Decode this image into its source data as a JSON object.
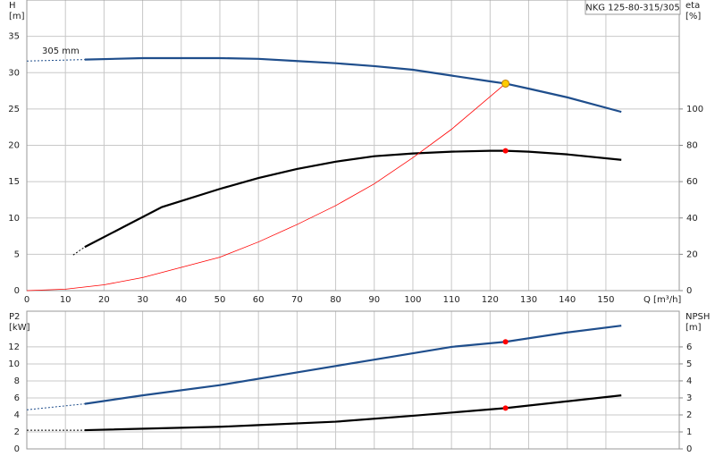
{
  "chart_data": [
    {
      "type": "line",
      "label": "NKG 125-80-315/305",
      "annotation": "305 mm",
      "ylabel": [
        "H",
        "[m]"
      ],
      "y2label": [
        "eta",
        "[%]"
      ],
      "xlabel": "Q [m³/h]",
      "xlim": [
        0,
        169
      ],
      "xticks": [
        0,
        10,
        20,
        30,
        40,
        50,
        60,
        70,
        80,
        90,
        100,
        110,
        120,
        130,
        140,
        150
      ],
      "ylim": [
        0,
        40
      ],
      "yticks": [
        0,
        5,
        10,
        15,
        20,
        25,
        30,
        35
      ],
      "y2lim": [
        0,
        160
      ],
      "y2ticks": [
        0,
        20,
        40,
        60,
        80,
        100
      ],
      "grid": true,
      "series": [
        {
          "color": "#1f4e8c",
          "width": 1,
          "dash": true,
          "x": [
            0,
            15
          ],
          "values": [
            31.6,
            31.8
          ]
        },
        {
          "color": "#1f4e8c",
          "width": 2.2,
          "dash": false,
          "x": [
            15,
            30,
            50,
            60,
            70,
            80,
            90,
            100,
            110,
            120,
            124,
            130,
            140,
            154
          ],
          "values": [
            31.8,
            32,
            32,
            31.9,
            31.6,
            31.3,
            30.9,
            30.4,
            29.6,
            28.8,
            28.5,
            27.8,
            26.6,
            24.6
          ]
        },
        {
          "color": "#000000",
          "width": 1,
          "dash": true,
          "axis": "y2",
          "x": [
            12,
            15
          ],
          "values": [
            19.6,
            24
          ]
        },
        {
          "color": "#000000",
          "width": 2.2,
          "dash": false,
          "axis": "y2",
          "x": [
            15,
            25,
            35,
            50,
            60,
            70,
            80,
            90,
            100,
            110,
            120,
            124,
            130,
            140,
            154
          ],
          "values": [
            24,
            35,
            46,
            56,
            62,
            67,
            71,
            74,
            75.5,
            76.5,
            77,
            77,
            76.5,
            75,
            72
          ]
        },
        {
          "color": "#ff0000",
          "width": 0.8,
          "dash": false,
          "x": [
            0,
            10,
            20,
            30,
            40,
            50,
            60,
            70,
            80,
            90,
            100,
            110,
            124
          ],
          "values": [
            0,
            0.2,
            0.8,
            1.8,
            3.2,
            4.6,
            6.7,
            9.1,
            11.7,
            14.7,
            18.3,
            22.2,
            28.5
          ]
        }
      ],
      "points": [
        {
          "x": 124,
          "y": 28.5,
          "color": "#ffcc00"
        },
        {
          "x": 124,
          "y": 77,
          "color": "#ff0000",
          "axis": "y2"
        }
      ]
    },
    {
      "type": "line",
      "ylabel": [
        "P2",
        "[kW]"
      ],
      "y2label": [
        "NPSH",
        "[m]"
      ],
      "xlim": [
        0,
        169
      ],
      "ylim": [
        0,
        16.2
      ],
      "yticks": [
        0,
        2,
        4,
        6,
        8,
        10,
        12
      ],
      "y2lim": [
        0,
        8.1
      ],
      "y2ticks": [
        0,
        1,
        2,
        3,
        4,
        5,
        6
      ],
      "grid": true,
      "series": [
        {
          "color": "#1f4e8c",
          "width": 1,
          "dash": true,
          "x": [
            0,
            15
          ],
          "values": [
            4.6,
            5.3
          ]
        },
        {
          "color": "#1f4e8c",
          "width": 2.2,
          "dash": false,
          "x": [
            15,
            30,
            50,
            70,
            90,
            110,
            124,
            140,
            154
          ],
          "values": [
            5.3,
            6.3,
            7.5,
            9,
            10.5,
            12,
            12.6,
            13.7,
            14.5
          ]
        },
        {
          "color": "#000000",
          "width": 1,
          "dash": true,
          "axis": "y2",
          "x": [
            0,
            15
          ],
          "values": [
            1.1,
            1.1
          ]
        },
        {
          "color": "#000000",
          "width": 2.2,
          "dash": false,
          "axis": "y2",
          "x": [
            15,
            50,
            60,
            80,
            100,
            124,
            140,
            154
          ],
          "values": [
            1.1,
            1.3,
            1.4,
            1.6,
            1.95,
            2.4,
            2.8,
            3.15
          ]
        }
      ],
      "points": [
        {
          "x": 124,
          "y": 12.6,
          "color": "#ff0000"
        },
        {
          "x": 124,
          "y": 2.4,
          "color": "#ff0000",
          "axis": "y2"
        }
      ]
    }
  ]
}
